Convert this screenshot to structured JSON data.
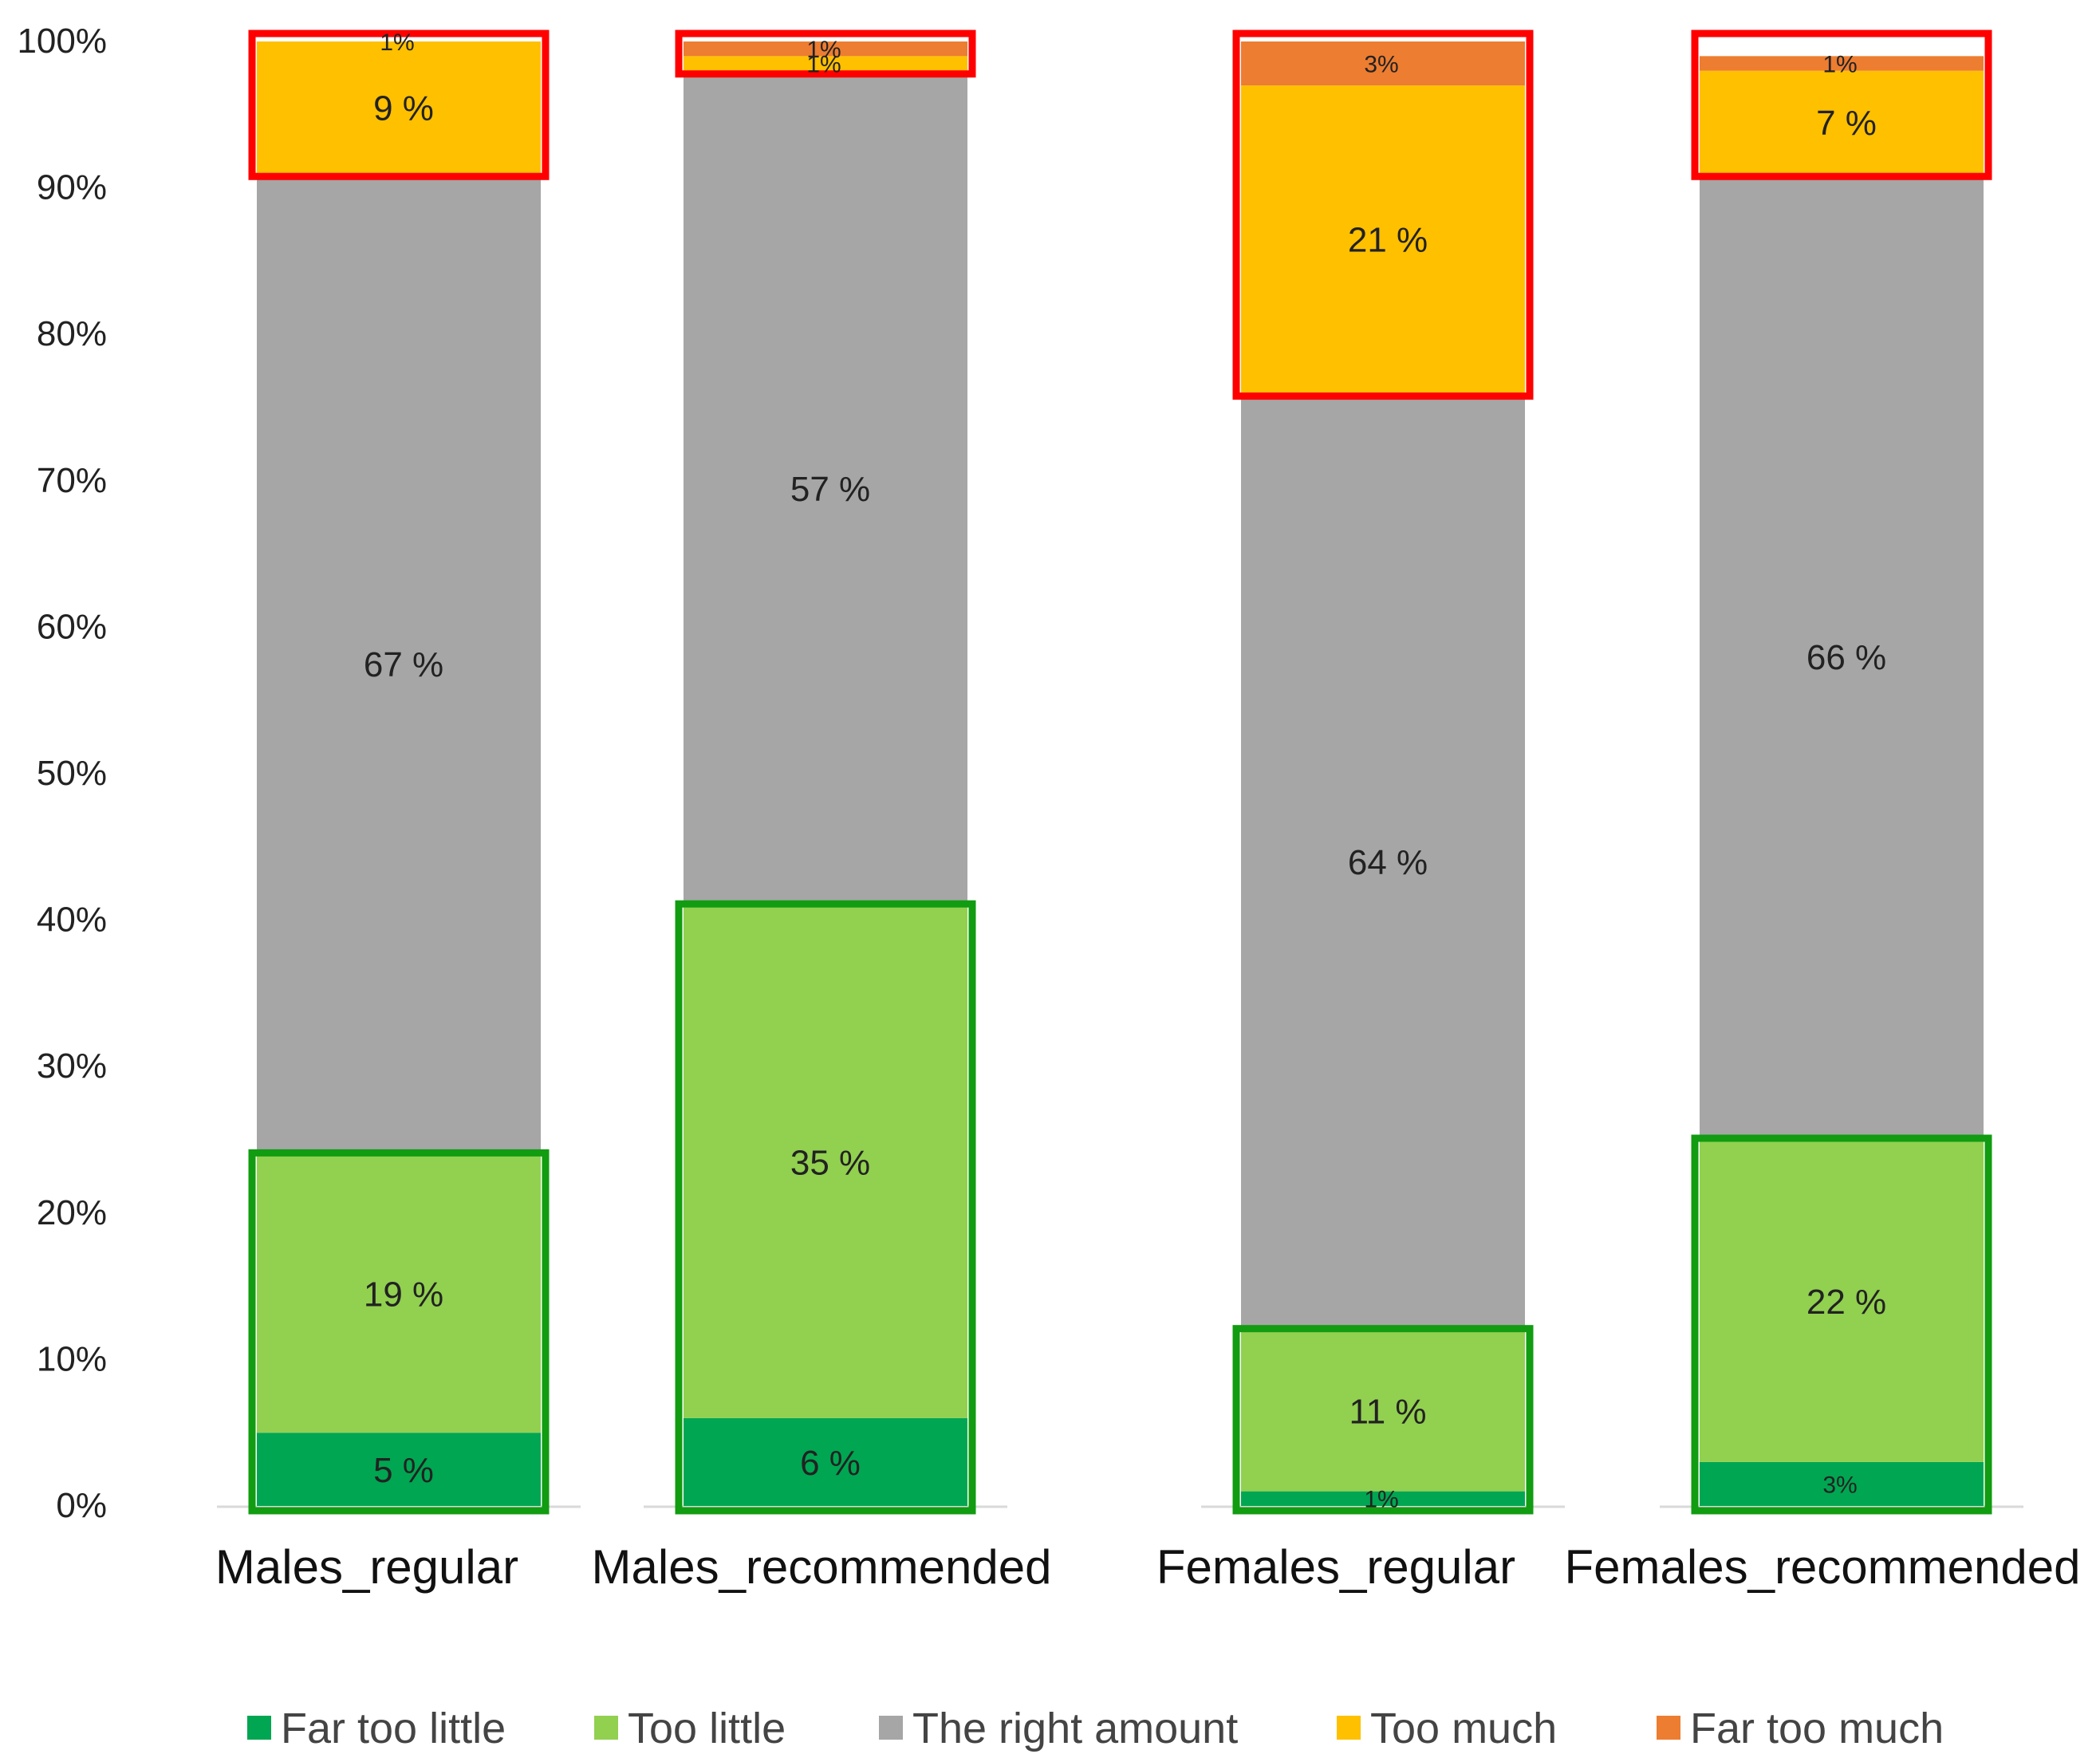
{
  "chart_data": {
    "type": "bar",
    "stacked": true,
    "categories": [
      "Males_regular",
      "Males_recommended",
      "Females_regular",
      "Females_recommended"
    ],
    "series": [
      {
        "name": "Far too little",
        "color": "#00A651",
        "values": [
          5,
          6,
          1,
          3
        ],
        "labels": [
          "5 %",
          "6 %",
          "1%",
          "3%"
        ]
      },
      {
        "name": "Too little",
        "color": "#92D050",
        "values": [
          19,
          35,
          11,
          22
        ],
        "labels": [
          "19 %",
          "35 %",
          "11 %",
          "22 %"
        ]
      },
      {
        "name": "The right amount",
        "color": "#A6A6A6",
        "values": [
          67,
          57,
          64,
          66
        ],
        "labels": [
          "67 %",
          "57 %",
          "64 %",
          "66 %"
        ]
      },
      {
        "name": "Too much",
        "color": "#FFC000",
        "values": [
          9,
          1,
          21,
          7
        ],
        "labels": [
          "9 %",
          "1%",
          "21 %",
          "7 %"
        ]
      },
      {
        "name": "Far too much",
        "color": "#ED7D31",
        "values": [
          1,
          1,
          3,
          1
        ],
        "labels": [
          "1%",
          "1%",
          "3%",
          "1%"
        ]
      }
    ],
    "yticks": [
      "0%",
      "10%",
      "20%",
      "30%",
      "40%",
      "50%",
      "60%",
      "70%",
      "80%",
      "90%",
      "100%"
    ],
    "ylim": [
      0,
      100
    ],
    "highlight_colors": {
      "too_little_group": "#119C11",
      "too_much_group": "#FF0000"
    },
    "legend_position": "bottom",
    "grid": false
  }
}
